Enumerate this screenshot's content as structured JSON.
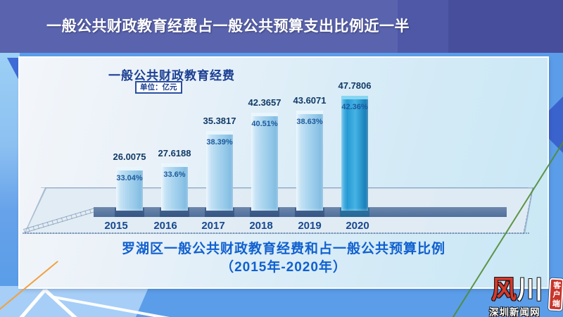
{
  "header": {
    "title": "一般公共财政教育经费占一般公共预算支出比例近一半"
  },
  "chart": {
    "title": "一般公共财政教育经费",
    "unit": "单位：亿元",
    "bars": [
      {
        "year": "2015",
        "value": "26.0075",
        "pct": "33.04%",
        "highlight": false
      },
      {
        "year": "2016",
        "value": "27.6188",
        "pct": "33.6%",
        "highlight": false
      },
      {
        "year": "2017",
        "value": "35.3817",
        "pct": "38.39%",
        "highlight": false
      },
      {
        "year": "2018",
        "value": "42.3657",
        "pct": "40.51%",
        "highlight": false
      },
      {
        "year": "2019",
        "value": "43.6071",
        "pct": "38.63%",
        "highlight": false
      },
      {
        "year": "2020",
        "value": "47.7806",
        "pct": "42.36%",
        "highlight": true
      }
    ]
  },
  "caption": {
    "line1": "罗湖区一般公共财政教育经费和占一般公共预算比例",
    "line2": "（2015年-2020年）"
  },
  "logo": {
    "mark_left": "风",
    "mark_right": "川",
    "site": "深圳新闻网",
    "badge": "客户端"
  },
  "colors": {
    "banner_bg": "#5a63ae",
    "bar_normal": "#a9d4ee",
    "bar_highlight": "#2699d4",
    "caption_text": "#1060cf",
    "logo_red": "#c8352b",
    "background_blue": "#5b9de9",
    "accent_orange": "#f2a13e",
    "accent_green": "#4f8c33"
  },
  "chart_data": {
    "type": "bar",
    "title": "一般公共财政教育经费",
    "subtitle": "罗湖区一般公共财政教育经费和占一般公共预算比例（2015年-2020年）",
    "unit": "亿元",
    "categories": [
      "2015",
      "2016",
      "2017",
      "2018",
      "2019",
      "2020"
    ],
    "series": [
      {
        "name": "一般公共财政教育经费（亿元）",
        "values": [
          26.0075,
          27.6188,
          35.3817,
          42.3657,
          43.6071,
          47.7806
        ]
      },
      {
        "name": "占一般公共预算支出比例",
        "values": [
          "33.04%",
          "33.6%",
          "38.39%",
          "40.51%",
          "38.63%",
          "42.36%"
        ]
      }
    ],
    "legend_position": "none",
    "grid": false,
    "style_note": "3D perspective light-blue bars on floor platform; 2020 bar emphasized in saturated cyan-blue"
  }
}
